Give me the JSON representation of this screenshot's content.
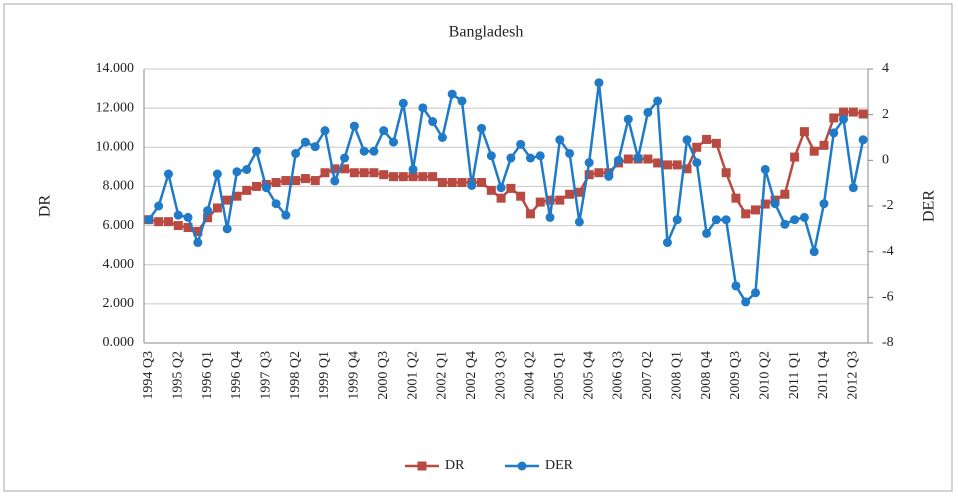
{
  "chart_data": {
    "type": "line",
    "title": "Bangladesh",
    "y_label": "DR",
    "y2_label": "DER",
    "categories": [
      "1994 Q3",
      null,
      null,
      "1995 Q2",
      null,
      null,
      "1996 Q1",
      null,
      null,
      "1996 Q4",
      null,
      null,
      "1997 Q3",
      null,
      null,
      "1998 Q2",
      null,
      null,
      "1999 Q1",
      null,
      null,
      "1999 Q4",
      null,
      null,
      "2000 Q3",
      null,
      null,
      "2001 Q2",
      null,
      null,
      "2002 Q1",
      null,
      null,
      "2002 Q4",
      null,
      null,
      "2003 Q3",
      null,
      null,
      "2004 Q2",
      null,
      null,
      "2005 Q1",
      null,
      null,
      "2005 Q4",
      null,
      null,
      "2006 Q3",
      null,
      null,
      "2007 Q2",
      null,
      null,
      "2008 Q1",
      null,
      null,
      "2008 Q4",
      null,
      null,
      "2009 Q3",
      null,
      null,
      "2010 Q2",
      null,
      null,
      "2011 Q1",
      null,
      null,
      "2011 Q4",
      null,
      null,
      "2012 Q3",
      null
    ],
    "series": [
      {
        "name": "DR",
        "color": "#b84a42",
        "marker": "square",
        "values": [
          6.3,
          6.2,
          6.2,
          6.0,
          5.9,
          5.7,
          6.4,
          6.9,
          7.3,
          7.5,
          7.8,
          8.0,
          8.1,
          8.2,
          8.3,
          8.3,
          8.4,
          8.3,
          8.7,
          8.9,
          8.9,
          8.7,
          8.7,
          8.7,
          8.6,
          8.5,
          8.5,
          8.5,
          8.5,
          8.5,
          8.2,
          8.2,
          8.2,
          8.2,
          8.2,
          7.8,
          7.4,
          7.9,
          7.5,
          6.6,
          7.2,
          7.3,
          7.3,
          7.6,
          7.7,
          8.6,
          8.7,
          8.7,
          9.2,
          9.4,
          9.4,
          9.4,
          9.2,
          9.1,
          9.1,
          8.9,
          10.0,
          10.4,
          10.2,
          8.7,
          7.4,
          6.6,
          6.8,
          7.1,
          7.3,
          7.6,
          9.5,
          10.8,
          9.8,
          10.1,
          11.5,
          11.8,
          11.8,
          11.7
        ]
      },
      {
        "name": "DER",
        "color": "#1f7ac8",
        "marker": "circle",
        "axis": "y2",
        "values": [
          -2.6,
          -2.0,
          -0.6,
          -2.4,
          -2.5,
          -3.6,
          -2.2,
          -0.6,
          -3.0,
          -0.5,
          -0.4,
          0.4,
          -1.2,
          -1.9,
          -2.4,
          0.3,
          0.8,
          0.6,
          1.3,
          -0.9,
          0.1,
          1.5,
          0.4,
          0.4,
          1.3,
          0.8,
          2.5,
          -0.4,
          2.3,
          1.7,
          1.0,
          2.9,
          2.6,
          -1.1,
          1.4,
          0.2,
          -1.2,
          0.1,
          0.7,
          0.1,
          0.2,
          -2.5,
          0.9,
          0.3,
          -2.7,
          -0.1,
          3.4,
          -0.7,
          0.0,
          1.8,
          0.1,
          2.1,
          2.6,
          -3.6,
          -2.6,
          0.9,
          -0.1,
          -3.2,
          -2.6,
          -2.6,
          -5.5,
          -6.2,
          -5.8,
          -0.4,
          -1.9,
          -2.8,
          -2.6,
          -2.5,
          -4.0,
          -1.9,
          1.2,
          1.8,
          -1.2,
          0.9
        ]
      }
    ],
    "ylim": [
      0,
      14
    ],
    "yticks": [
      {
        "value": 0,
        "label": "0.000"
      },
      {
        "value": 2,
        "label": "2.000"
      },
      {
        "value": 4,
        "label": "4.000"
      },
      {
        "value": 6,
        "label": "6.000"
      },
      {
        "value": 8,
        "label": "8.000"
      },
      {
        "value": 10,
        "label": "10.000"
      },
      {
        "value": 12,
        "label": "12.000"
      },
      {
        "value": 14,
        "label": "14.000"
      }
    ],
    "y2lim": [
      -8,
      4
    ],
    "y2ticks": [
      -8,
      -6,
      -4,
      -2,
      0,
      2,
      4
    ],
    "grid": true,
    "legend": "bottom"
  }
}
